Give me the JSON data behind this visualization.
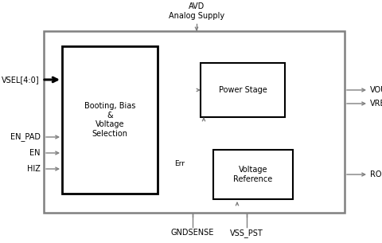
{
  "bg_color": "#ffffff",
  "line_color": "#808080",
  "black": "#000000",
  "fontsize": 7.0,
  "avd_label": "AVD\nAnalog Supply",
  "gndsense_label": "GNDSENSE",
  "vss_pst_label": "VSS_PST",
  "vsel_label": "VSEL[4:0]",
  "en_pad_label": "EN_PAD",
  "en_label": "EN",
  "hiz_label": "HIZ",
  "vout_label": "VOUT",
  "vreg_label": "VREG",
  "rok_label": "ROK",
  "booting_label": "Booting, Bias\n&\nVoltage\nSelection",
  "power_stage_label": "Power Stage",
  "voltage_ref_label": "Voltage\nReference",
  "err_label": "Err"
}
